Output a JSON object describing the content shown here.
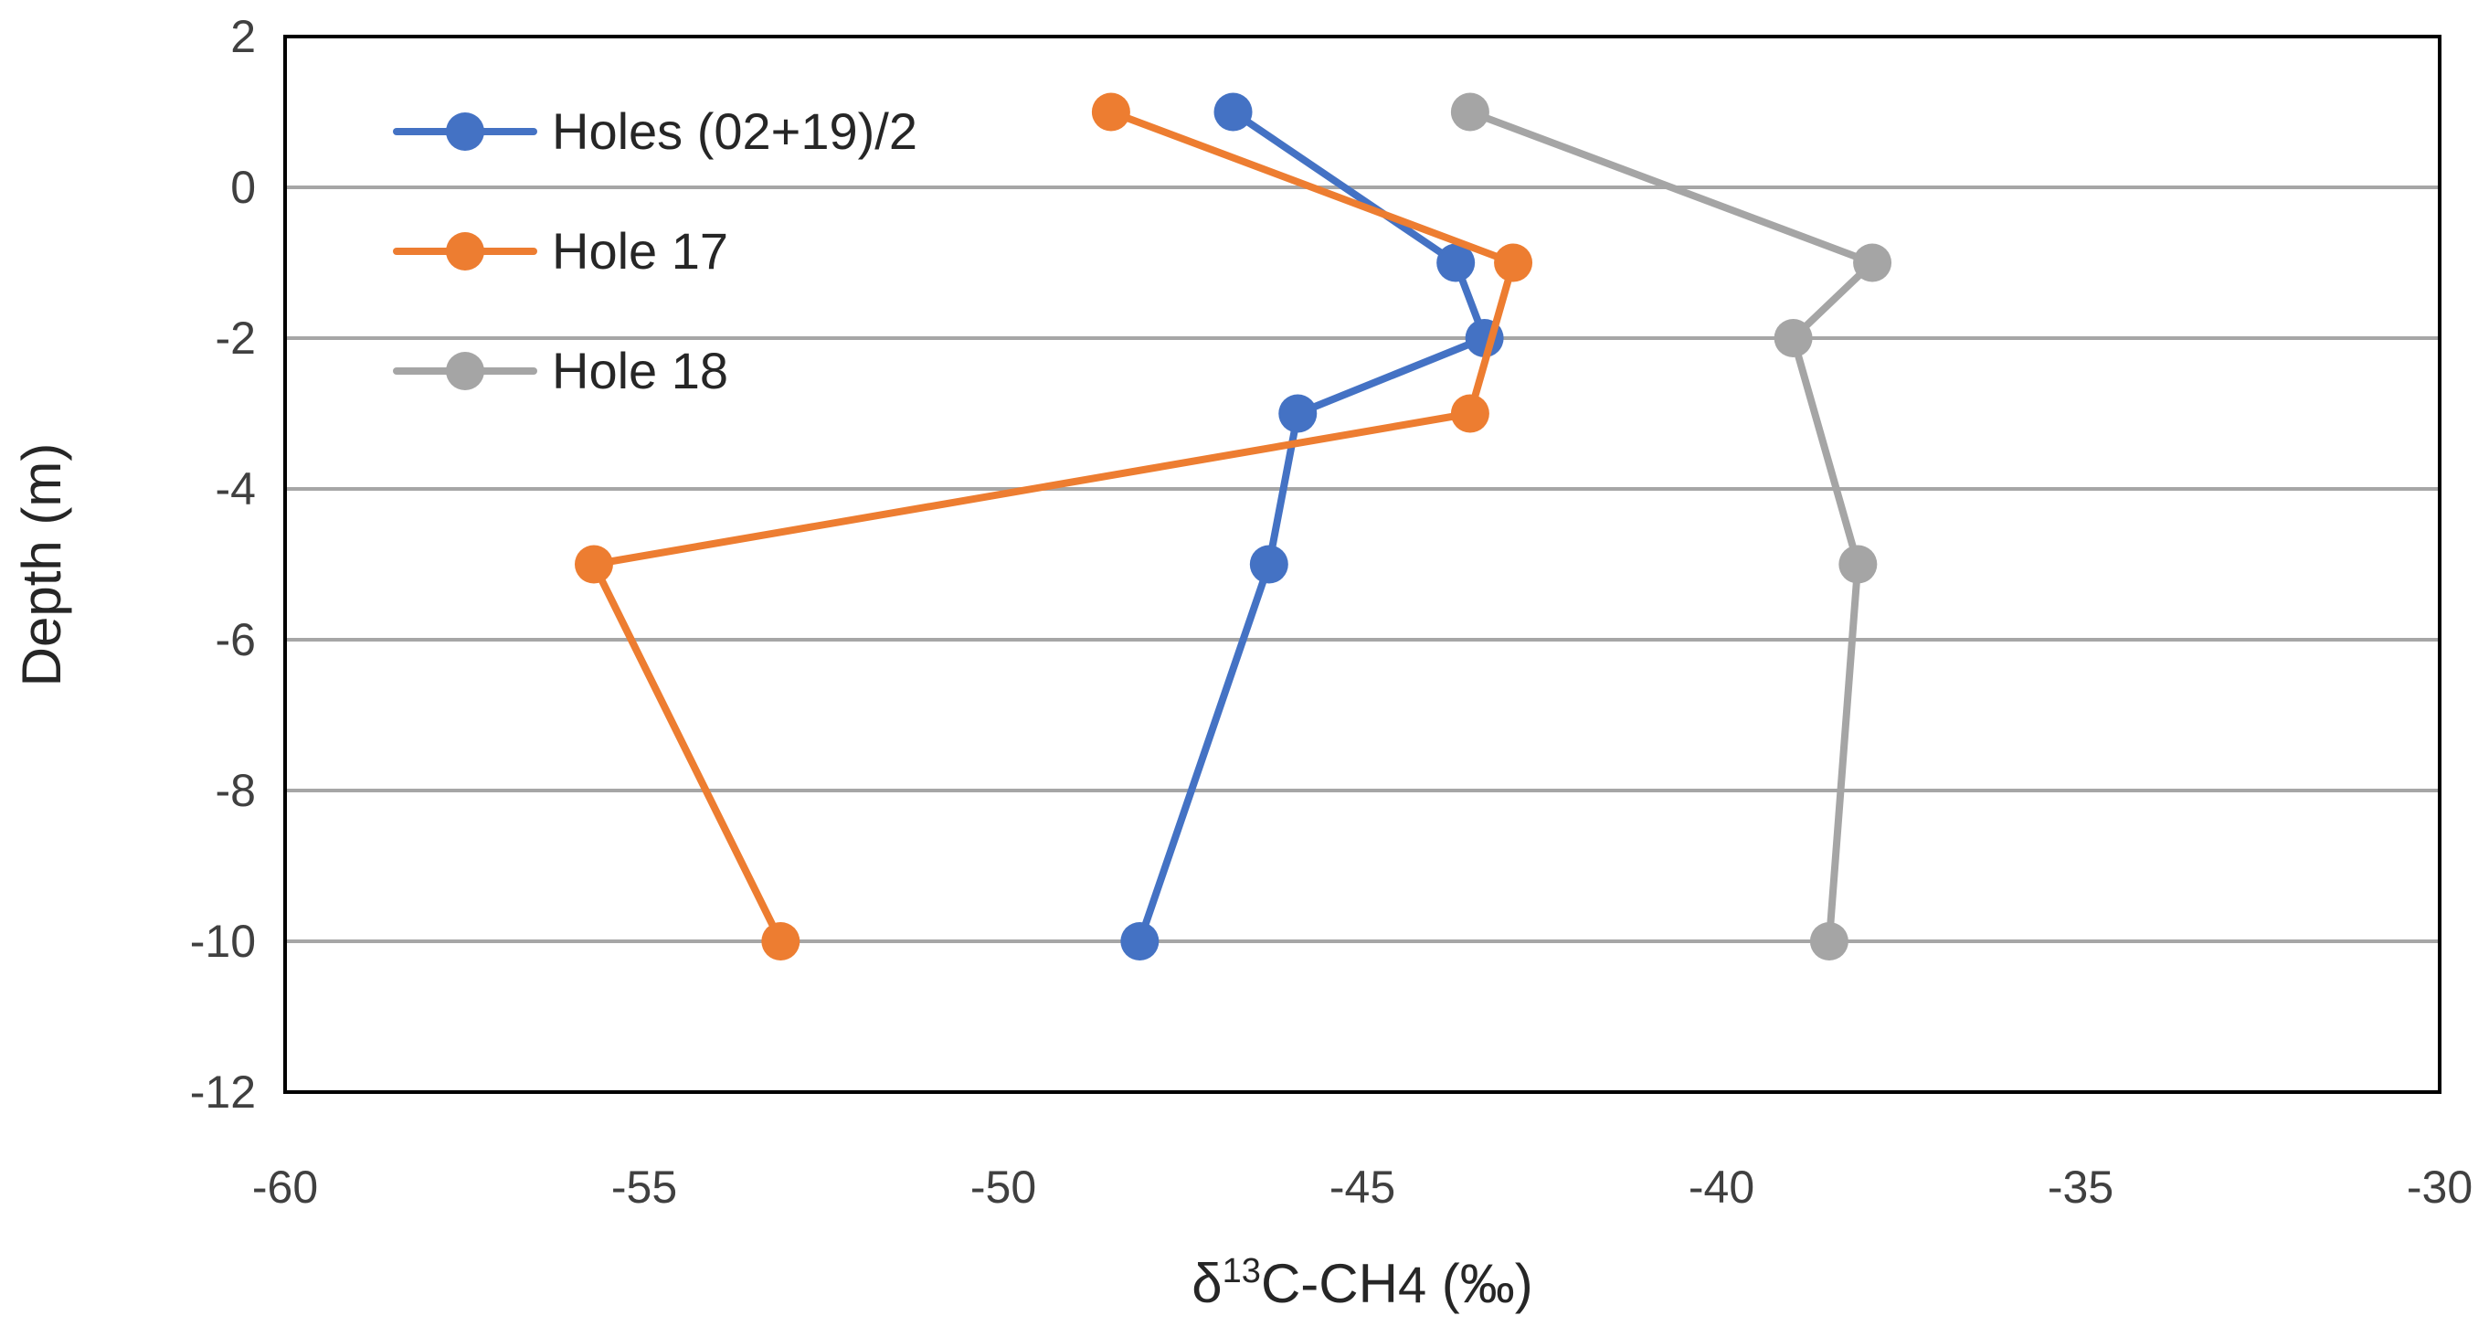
{
  "chart_data": {
    "type": "line",
    "title": "",
    "xlabel_parts": {
      "prefix": "δ",
      "superscript": "13",
      "suffix": "C-CH",
      "subscript": "4",
      "unit": " (‰)"
    },
    "ylabel": "Depth (m)",
    "xlim": [
      -60,
      -30
    ],
    "ylim": [
      -12,
      2
    ],
    "xticks": [
      -60,
      -55,
      -50,
      -45,
      -40,
      -35,
      -30
    ],
    "yticks": [
      2,
      0,
      -2,
      -4,
      -6,
      -8,
      -10,
      -12
    ],
    "grid": {
      "horizontal": true,
      "vertical": false
    },
    "legend_position": "top-left",
    "series": [
      {
        "name": "Holes (02+19)/2",
        "color": "#4472c4",
        "points": [
          {
            "x": -46.8,
            "y": 1
          },
          {
            "x": -43.7,
            "y": -1
          },
          {
            "x": -43.3,
            "y": -2
          },
          {
            "x": -45.9,
            "y": -3
          },
          {
            "x": -46.3,
            "y": -5
          },
          {
            "x": -48.1,
            "y": -10
          }
        ]
      },
      {
        "name": "Hole 17",
        "color": "#ed7d31",
        "points": [
          {
            "x": -48.5,
            "y": 1
          },
          {
            "x": -42.9,
            "y": -1
          },
          {
            "x": -43.5,
            "y": -3
          },
          {
            "x": -55.7,
            "y": -5
          },
          {
            "x": -53.1,
            "y": -10
          }
        ]
      },
      {
        "name": "Hole 18",
        "color": "#a5a5a5",
        "points": [
          {
            "x": -43.5,
            "y": 1
          },
          {
            "x": -37.9,
            "y": -1
          },
          {
            "x": -39.0,
            "y": -2
          },
          {
            "x": -38.1,
            "y": -5
          },
          {
            "x": -38.5,
            "y": -10
          }
        ]
      }
    ]
  }
}
